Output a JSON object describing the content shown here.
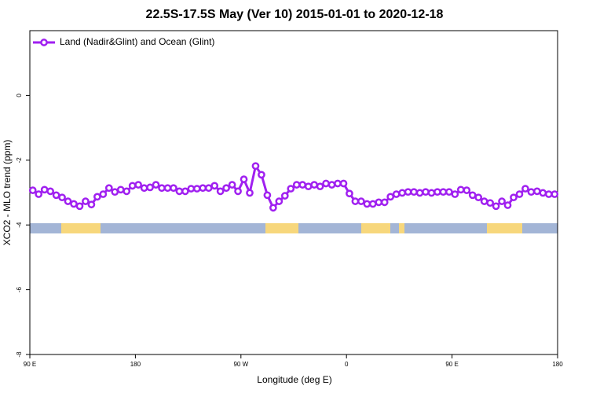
{
  "chart_data": {
    "type": "line",
    "title": "22.5S-17.5S May (Ver 10)   2015-01-01 to 2020-12-18",
    "xlabel": "Longitude (deg E)",
    "ylabel": "XCO2 - MLO trend (ppm)",
    "legend": "top-left",
    "xlim": [
      90,
      540
    ],
    "ylim": [
      -8,
      2
    ],
    "xticks": [
      {
        "value": 90,
        "label": "90 E"
      },
      {
        "value": 180,
        "label": "180"
      },
      {
        "value": 270,
        "label": "90 W"
      },
      {
        "value": 360,
        "label": "0"
      },
      {
        "value": 450,
        "label": "90 E"
      },
      {
        "value": 540,
        "label": "180"
      }
    ],
    "yticks": [
      -8,
      -6,
      -4,
      -2,
      0
    ],
    "x": [
      92.5,
      97.5,
      102.5,
      107.5,
      112.5,
      117.5,
      122.5,
      127.5,
      132.5,
      137.5,
      142.5,
      147.5,
      152.5,
      157.5,
      162.5,
      167.5,
      172.5,
      177.5,
      182.5,
      187.5,
      192.5,
      197.5,
      202.5,
      207.5,
      212.5,
      217.5,
      222.5,
      227.5,
      232.5,
      237.5,
      242.5,
      247.5,
      252.5,
      257.5,
      262.5,
      267.5,
      272.5,
      277.5,
      282.5,
      287.5,
      292.5,
      297.5,
      302.5,
      307.5,
      312.5,
      317.5,
      322.5,
      327.5,
      332.5,
      337.5,
      342.5,
      347.5,
      352.5,
      357.5,
      362.5,
      367.5,
      372.5,
      377.5,
      382.5,
      387.5,
      392.5,
      397.5,
      402.5,
      407.5,
      412.5,
      417.5,
      422.5,
      427.5,
      432.5,
      437.5,
      442.5,
      447.5,
      452.5,
      457.5,
      462.5,
      467.5,
      472.5,
      477.5,
      482.5,
      487.5,
      492.5,
      497.5,
      502.5,
      507.5,
      512.5,
      517.5,
      522.5,
      527.5,
      532.5,
      537.5
    ],
    "series": [
      {
        "name": "Land (Nadir&Glint) and Ocean (Glint)",
        "color": "#a020f0",
        "values": [
          -2.93,
          -3.05,
          -2.91,
          -2.96,
          -3.08,
          -3.15,
          -3.27,
          -3.35,
          -3.42,
          -3.27,
          -3.37,
          -3.13,
          -3.05,
          -2.86,
          -2.98,
          -2.91,
          -2.96,
          -2.79,
          -2.76,
          -2.86,
          -2.84,
          -2.76,
          -2.86,
          -2.86,
          -2.86,
          -2.96,
          -2.96,
          -2.88,
          -2.88,
          -2.86,
          -2.86,
          -2.79,
          -2.96,
          -2.86,
          -2.76,
          -2.96,
          -2.59,
          -3.01,
          -2.18,
          -2.45,
          -3.08,
          -3.47,
          -3.27,
          -3.1,
          -2.88,
          -2.76,
          -2.76,
          -2.81,
          -2.76,
          -2.81,
          -2.72,
          -2.76,
          -2.72,
          -2.72,
          -3.03,
          -3.27,
          -3.27,
          -3.35,
          -3.35,
          -3.3,
          -3.3,
          -3.13,
          -3.05,
          -3.01,
          -2.98,
          -2.98,
          -3.01,
          -2.98,
          -3.01,
          -2.98,
          -2.98,
          -2.98,
          -3.05,
          -2.91,
          -2.93,
          -3.08,
          -3.15,
          -3.27,
          -3.32,
          -3.42,
          -3.27,
          -3.39,
          -3.15,
          -3.05,
          -2.88,
          -2.98,
          -2.96,
          -3.01,
          -3.05,
          -3.05
        ]
      }
    ]
  }
}
